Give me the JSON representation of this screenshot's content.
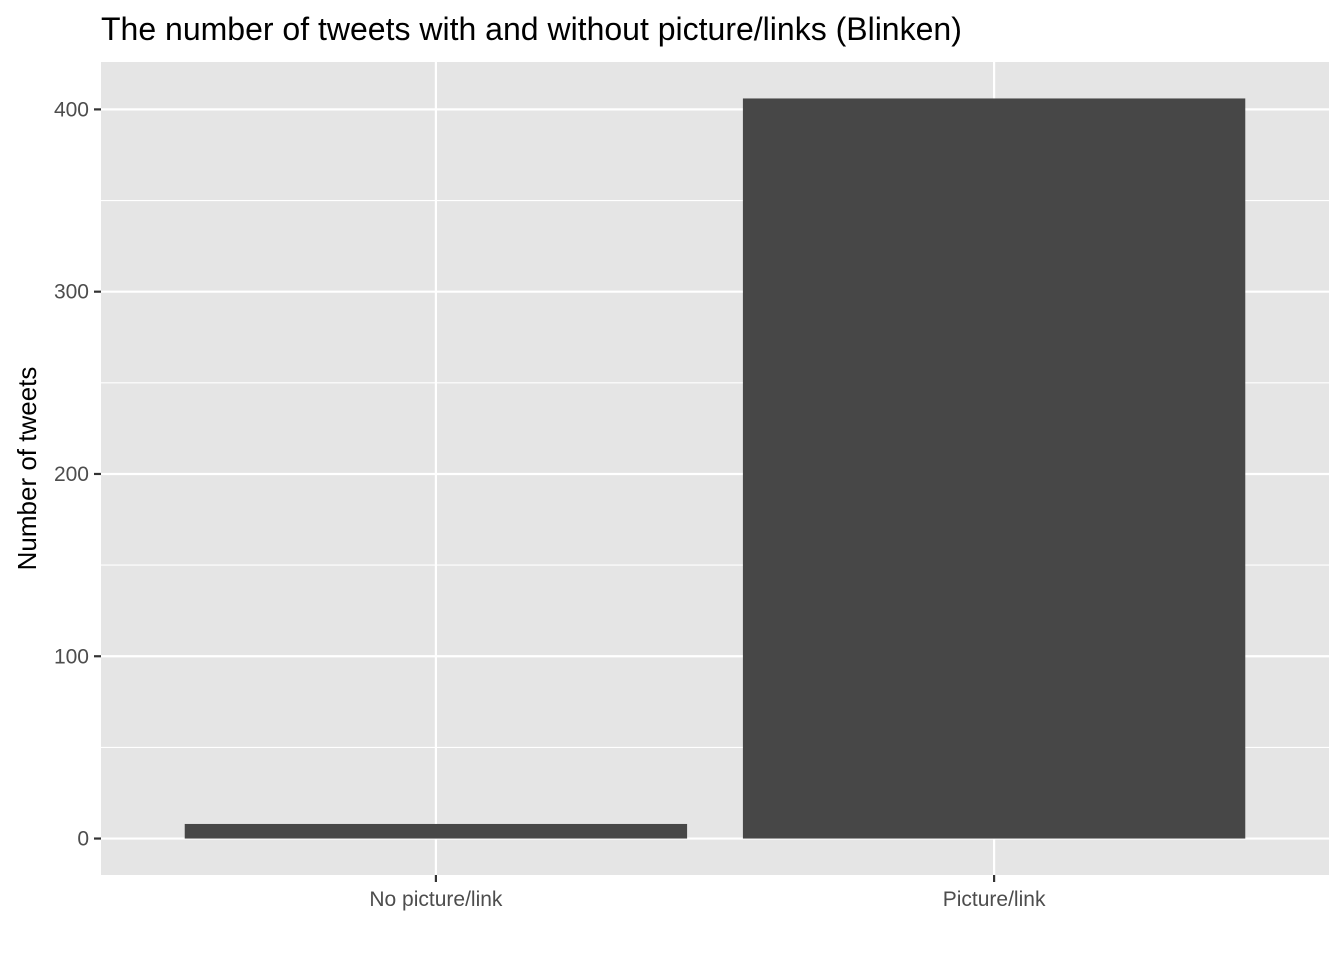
{
  "chart_data": {
    "type": "bar",
    "title": "The number of tweets with and without picture/links (Blinken)",
    "xlabel": "",
    "ylabel": "Number of tweets",
    "categories": [
      "No picture/link",
      "Picture/link"
    ],
    "values": [
      8,
      406
    ],
    "ylim": [
      -20,
      426
    ],
    "yticks": [
      0,
      100,
      200,
      300,
      400
    ],
    "grid": true,
    "legend": "none",
    "colors": {
      "bar": "#474747",
      "panel": "#e5e5e5",
      "grid": "#ffffff"
    }
  }
}
